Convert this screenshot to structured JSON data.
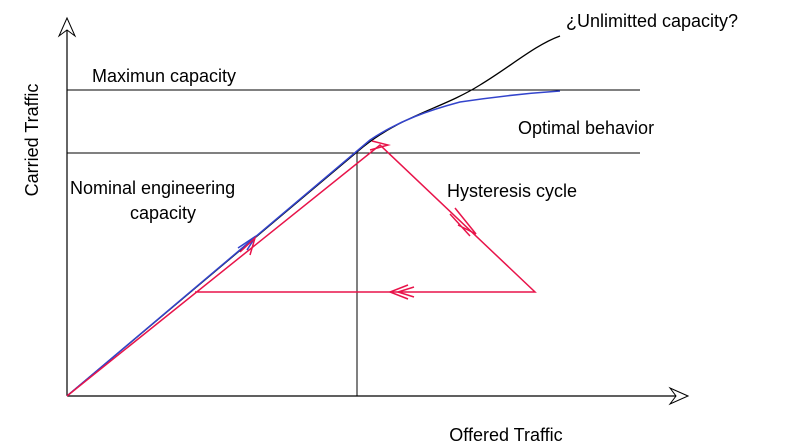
{
  "diagram": {
    "y_axis_label": "Carried Traffic",
    "x_axis_label": "Offered Traffic",
    "labels": {
      "unlimited": "¿Unlimitted capacity?",
      "maximum": "Maximun capacity",
      "optimal": "Optimal behavior",
      "nominal": [
        "Nominal engineering",
        "capacity"
      ],
      "hysteresis": "Hysteresis cycle"
    }
  }
}
